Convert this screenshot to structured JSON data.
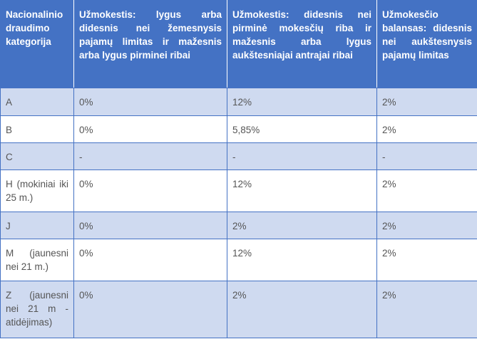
{
  "table": {
    "headers": [
      "Nacionalinio draudimo kategorija",
      "Užmokestis: lygus arba didesnis nei žemesnysis pajamų limitas ir mažesnis arba lygus pirminei ribai",
      "Užmokestis: didesnis nei pirminė mokesčių riba ir mažesnis arba lygus aukštesniajai antrajai ribai",
      "Užmokesčio balansas: didesnis nei aukštesnysis pajamų limitas"
    ],
    "rows": [
      [
        "A",
        "0%",
        "12%",
        "2%"
      ],
      [
        "B",
        "0%",
        "5,85%",
        "2%"
      ],
      [
        "C",
        "-",
        "-",
        "-"
      ],
      [
        "H (mokiniai iki 25 m.)",
        "0%",
        "12%",
        "2%"
      ],
      [
        "J",
        "0%",
        "2%",
        "2%"
      ],
      [
        "M (jaunesni nei 21 m.)",
        "0%",
        "12%",
        "2%"
      ],
      [
        "Z (jaunesni nei 21 m - atidėjimas)",
        "0%",
        "2%",
        "2%"
      ]
    ]
  },
  "colors": {
    "header_background": "#4472c4",
    "header_text": "#ffffff",
    "stripe_background": "#cfdaf0",
    "border": "#4472c4",
    "body_text": "#555555"
  }
}
